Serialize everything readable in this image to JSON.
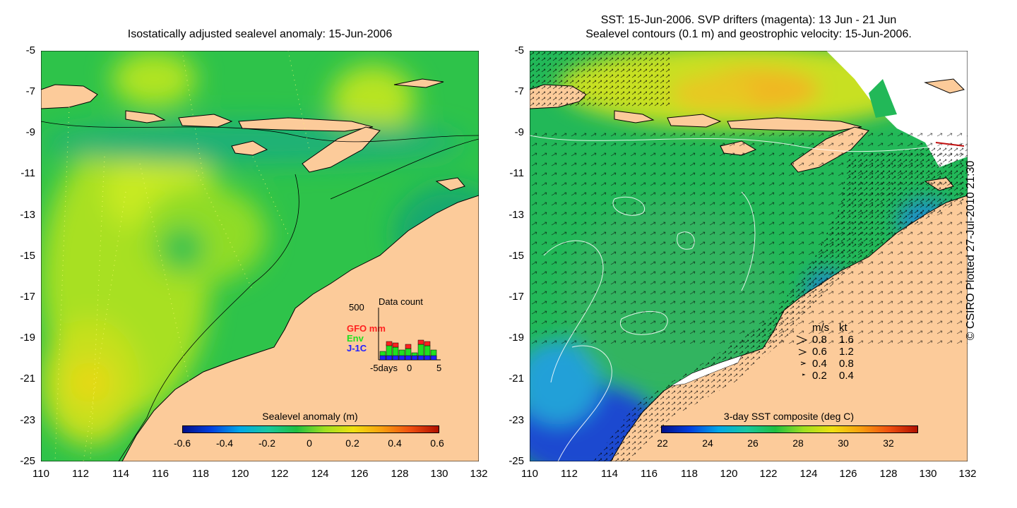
{
  "left_panel": {
    "title": "Isostatically adjusted sealevel anomaly: 15-Jun-2006",
    "y_ticks": [
      "-5",
      "-7",
      "-9",
      "-11",
      "-13",
      "-15",
      "-17",
      "-19",
      "-21",
      "-23",
      "-25"
    ],
    "x_ticks": [
      "110",
      "112",
      "114",
      "116",
      "118",
      "120",
      "122",
      "124",
      "126",
      "128",
      "130",
      "132"
    ],
    "colorbar": {
      "label": "Sealevel anomaly (m)",
      "ticks": [
        "-0.6",
        "-0.4",
        "-0.2",
        "0",
        "0.2",
        "0.4",
        "0.6"
      ]
    },
    "inset": {
      "title": "Data count",
      "y_tick": "500",
      "legend": [
        {
          "name": "GFO mm",
          "color": "#ff2020"
        },
        {
          "name": "Env",
          "color": "#20e020"
        },
        {
          "name": "J-1C",
          "color": "#2020ff"
        }
      ],
      "x_ticks": [
        "-5days",
        "0",
        "5"
      ]
    }
  },
  "right_panel": {
    "title_line1": "SST: 15-Jun-2006. SVP drifters (magenta): 13 Jun - 21 Jun",
    "title_line2": "Sealevel contours (0.1 m) and geostrophic velocity: 15-Jun-2006.",
    "y_ticks": [
      "-5",
      "-7",
      "-9",
      "-11",
      "-13",
      "-15",
      "-17",
      "-19",
      "-21",
      "-23",
      "-25"
    ],
    "x_ticks": [
      "110",
      "112",
      "114",
      "116",
      "118",
      "120",
      "122",
      "124",
      "126",
      "128",
      "130",
      "132"
    ],
    "velocity_legend": {
      "header_ms": "m/s",
      "header_kt": "kt",
      "rows": [
        {
          "ms": "0.8",
          "kt": "1.6"
        },
        {
          "ms": "0.6",
          "kt": "1.2"
        },
        {
          "ms": "0.4",
          "kt": "0.8"
        },
        {
          "ms": "0.2",
          "kt": "0.4"
        }
      ]
    },
    "colorbar": {
      "label": "3-day SST composite (deg C)",
      "ticks": [
        "22",
        "24",
        "26",
        "28",
        "30",
        "32"
      ]
    }
  },
  "copyright": "© CSIRO Plotted 27-Jul-2010 21:30",
  "colors": {
    "land": "#fccb9a",
    "sea_green": "#22c04a",
    "sea_yellowgreen": "#a8e020",
    "sea_teal": "#18b098",
    "sst_blue": "#1c48d0",
    "sst_orange": "#f0a010"
  }
}
